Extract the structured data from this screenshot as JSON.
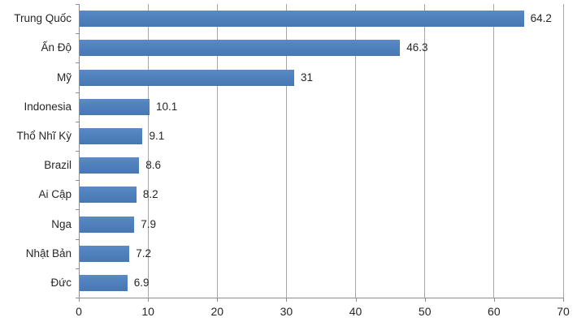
{
  "chart_data": {
    "type": "bar",
    "orientation": "horizontal",
    "title": "",
    "xlabel": "",
    "ylabel": "",
    "categories": [
      "Trung Quốc",
      "Ấn Độ",
      "Mỹ",
      "Indonesia",
      "Thổ Nhĩ Kỳ",
      "Brazil",
      "Ai Cập",
      "Nga",
      "Nhật Bản",
      "Đức"
    ],
    "values": [
      64.2,
      46.3,
      31,
      10.1,
      9.1,
      8.6,
      8.2,
      7.9,
      7.2,
      6.9
    ],
    "value_labels": [
      "64.2",
      "46.3",
      "31",
      "10.1",
      "9.1",
      "8.6",
      "8.2",
      "7.9",
      "7.2",
      "6.9"
    ],
    "xlim": [
      0,
      70
    ],
    "x_ticks": [
      0,
      10,
      20,
      30,
      40,
      50,
      60,
      70
    ],
    "grid": true,
    "legend": false,
    "bar_color": "#4f81bd",
    "gridline_color": "#a6a6a6",
    "axis_color": "#8c8c8c",
    "text_color": "#262626"
  }
}
